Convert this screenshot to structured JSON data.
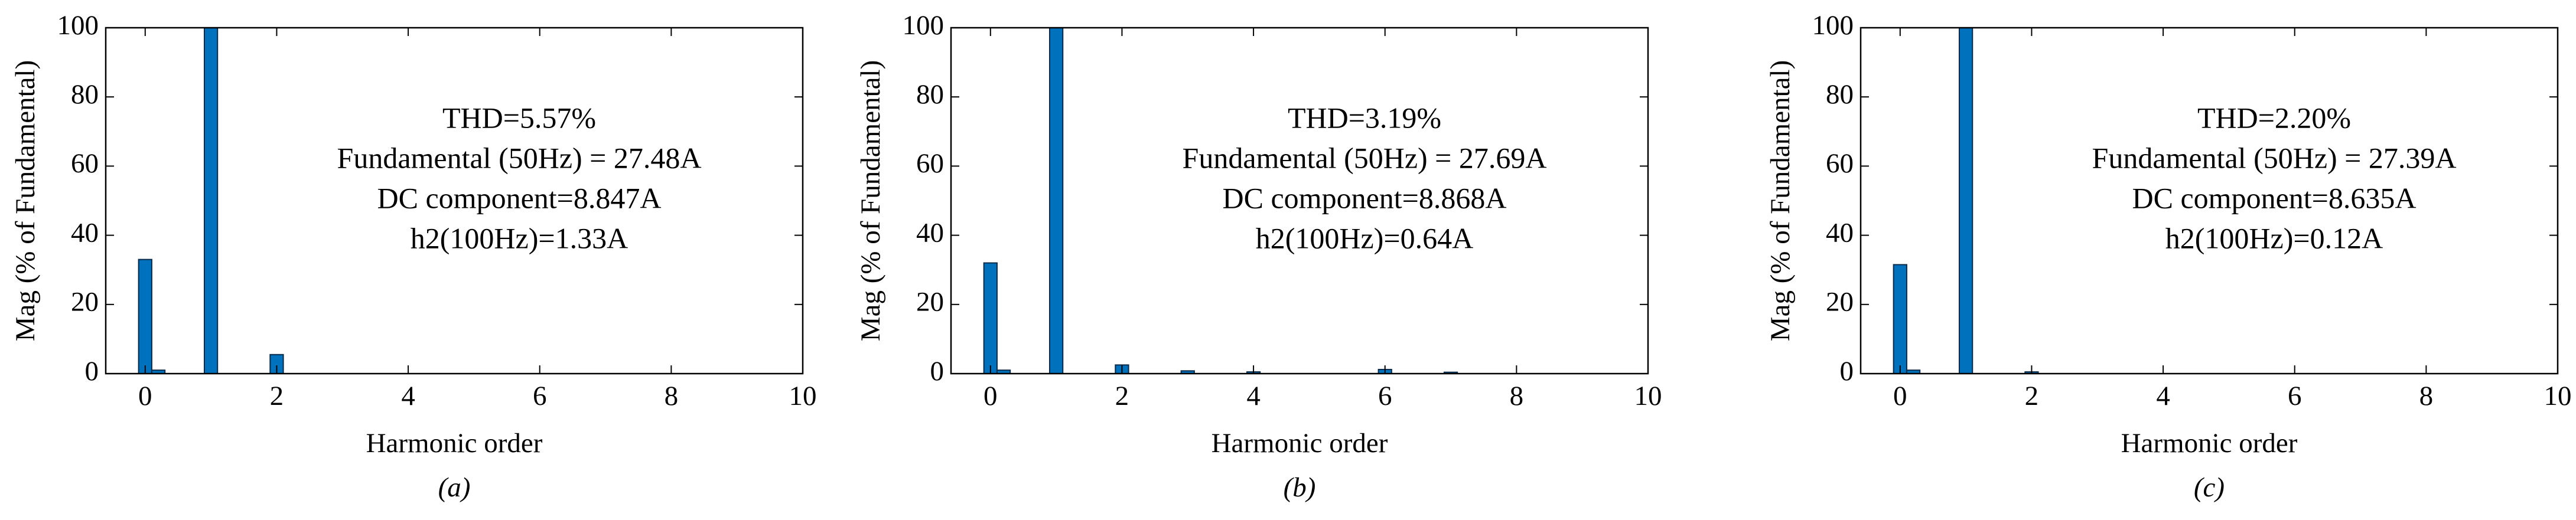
{
  "chart_data": [
    {
      "type": "bar",
      "caption": "(a)",
      "xlabel": "Harmonic order",
      "ylabel": "Mag (% of Fundamental)",
      "annotations": [
        "THD=5.57%",
        "Fundamental (50Hz) = 27.48A",
        "DC component=8.847A",
        "h2(100Hz)=1.33A"
      ],
      "x": [
        0,
        0.2,
        1,
        2
      ],
      "values": [
        33,
        1,
        100,
        5.5
      ],
      "color": "#0072bd",
      "xlim": [
        -0.6,
        10
      ],
      "ylim": [
        0,
        100
      ],
      "xticks": [
        0,
        2,
        4,
        6,
        8,
        10
      ],
      "yticks": [
        0,
        20,
        40,
        60,
        80,
        100
      ]
    },
    {
      "type": "bar",
      "caption": "(b)",
      "xlabel": "Harmonic order",
      "ylabel": "Mag (% of Fundamental)",
      "annotations": [
        "THD=3.19%",
        "Fundamental (50Hz) = 27.69A",
        "DC component=8.868A",
        "h2(100Hz)=0.64A"
      ],
      "x": [
        0,
        0.2,
        1,
        2,
        3,
        4,
        6,
        7
      ],
      "values": [
        32,
        1,
        100,
        2.5,
        0.8,
        0.5,
        1.2,
        0.4
      ],
      "color": "#0072bd",
      "xlim": [
        -0.6,
        10
      ],
      "ylim": [
        0,
        100
      ],
      "xticks": [
        0,
        2,
        4,
        6,
        8,
        10
      ],
      "yticks": [
        0,
        20,
        40,
        60,
        80,
        100
      ]
    },
    {
      "type": "bar",
      "caption": "(c)",
      "xlabel": "Harmonic order",
      "ylabel": "Mag (% of Fundamental)",
      "annotations": [
        "THD=2.20%",
        "Fundamental (50Hz) = 27.39A",
        "DC component=8.635A",
        "h2(100Hz)=0.12A"
      ],
      "x": [
        0,
        0.2,
        1,
        2
      ],
      "values": [
        31.5,
        1,
        100,
        0.5
      ],
      "color": "#0072bd",
      "xlim": [
        -0.6,
        10
      ],
      "ylim": [
        0,
        100
      ],
      "xticks": [
        0,
        2,
        4,
        6,
        8,
        10
      ],
      "yticks": [
        0,
        20,
        40,
        60,
        80,
        100
      ]
    }
  ]
}
